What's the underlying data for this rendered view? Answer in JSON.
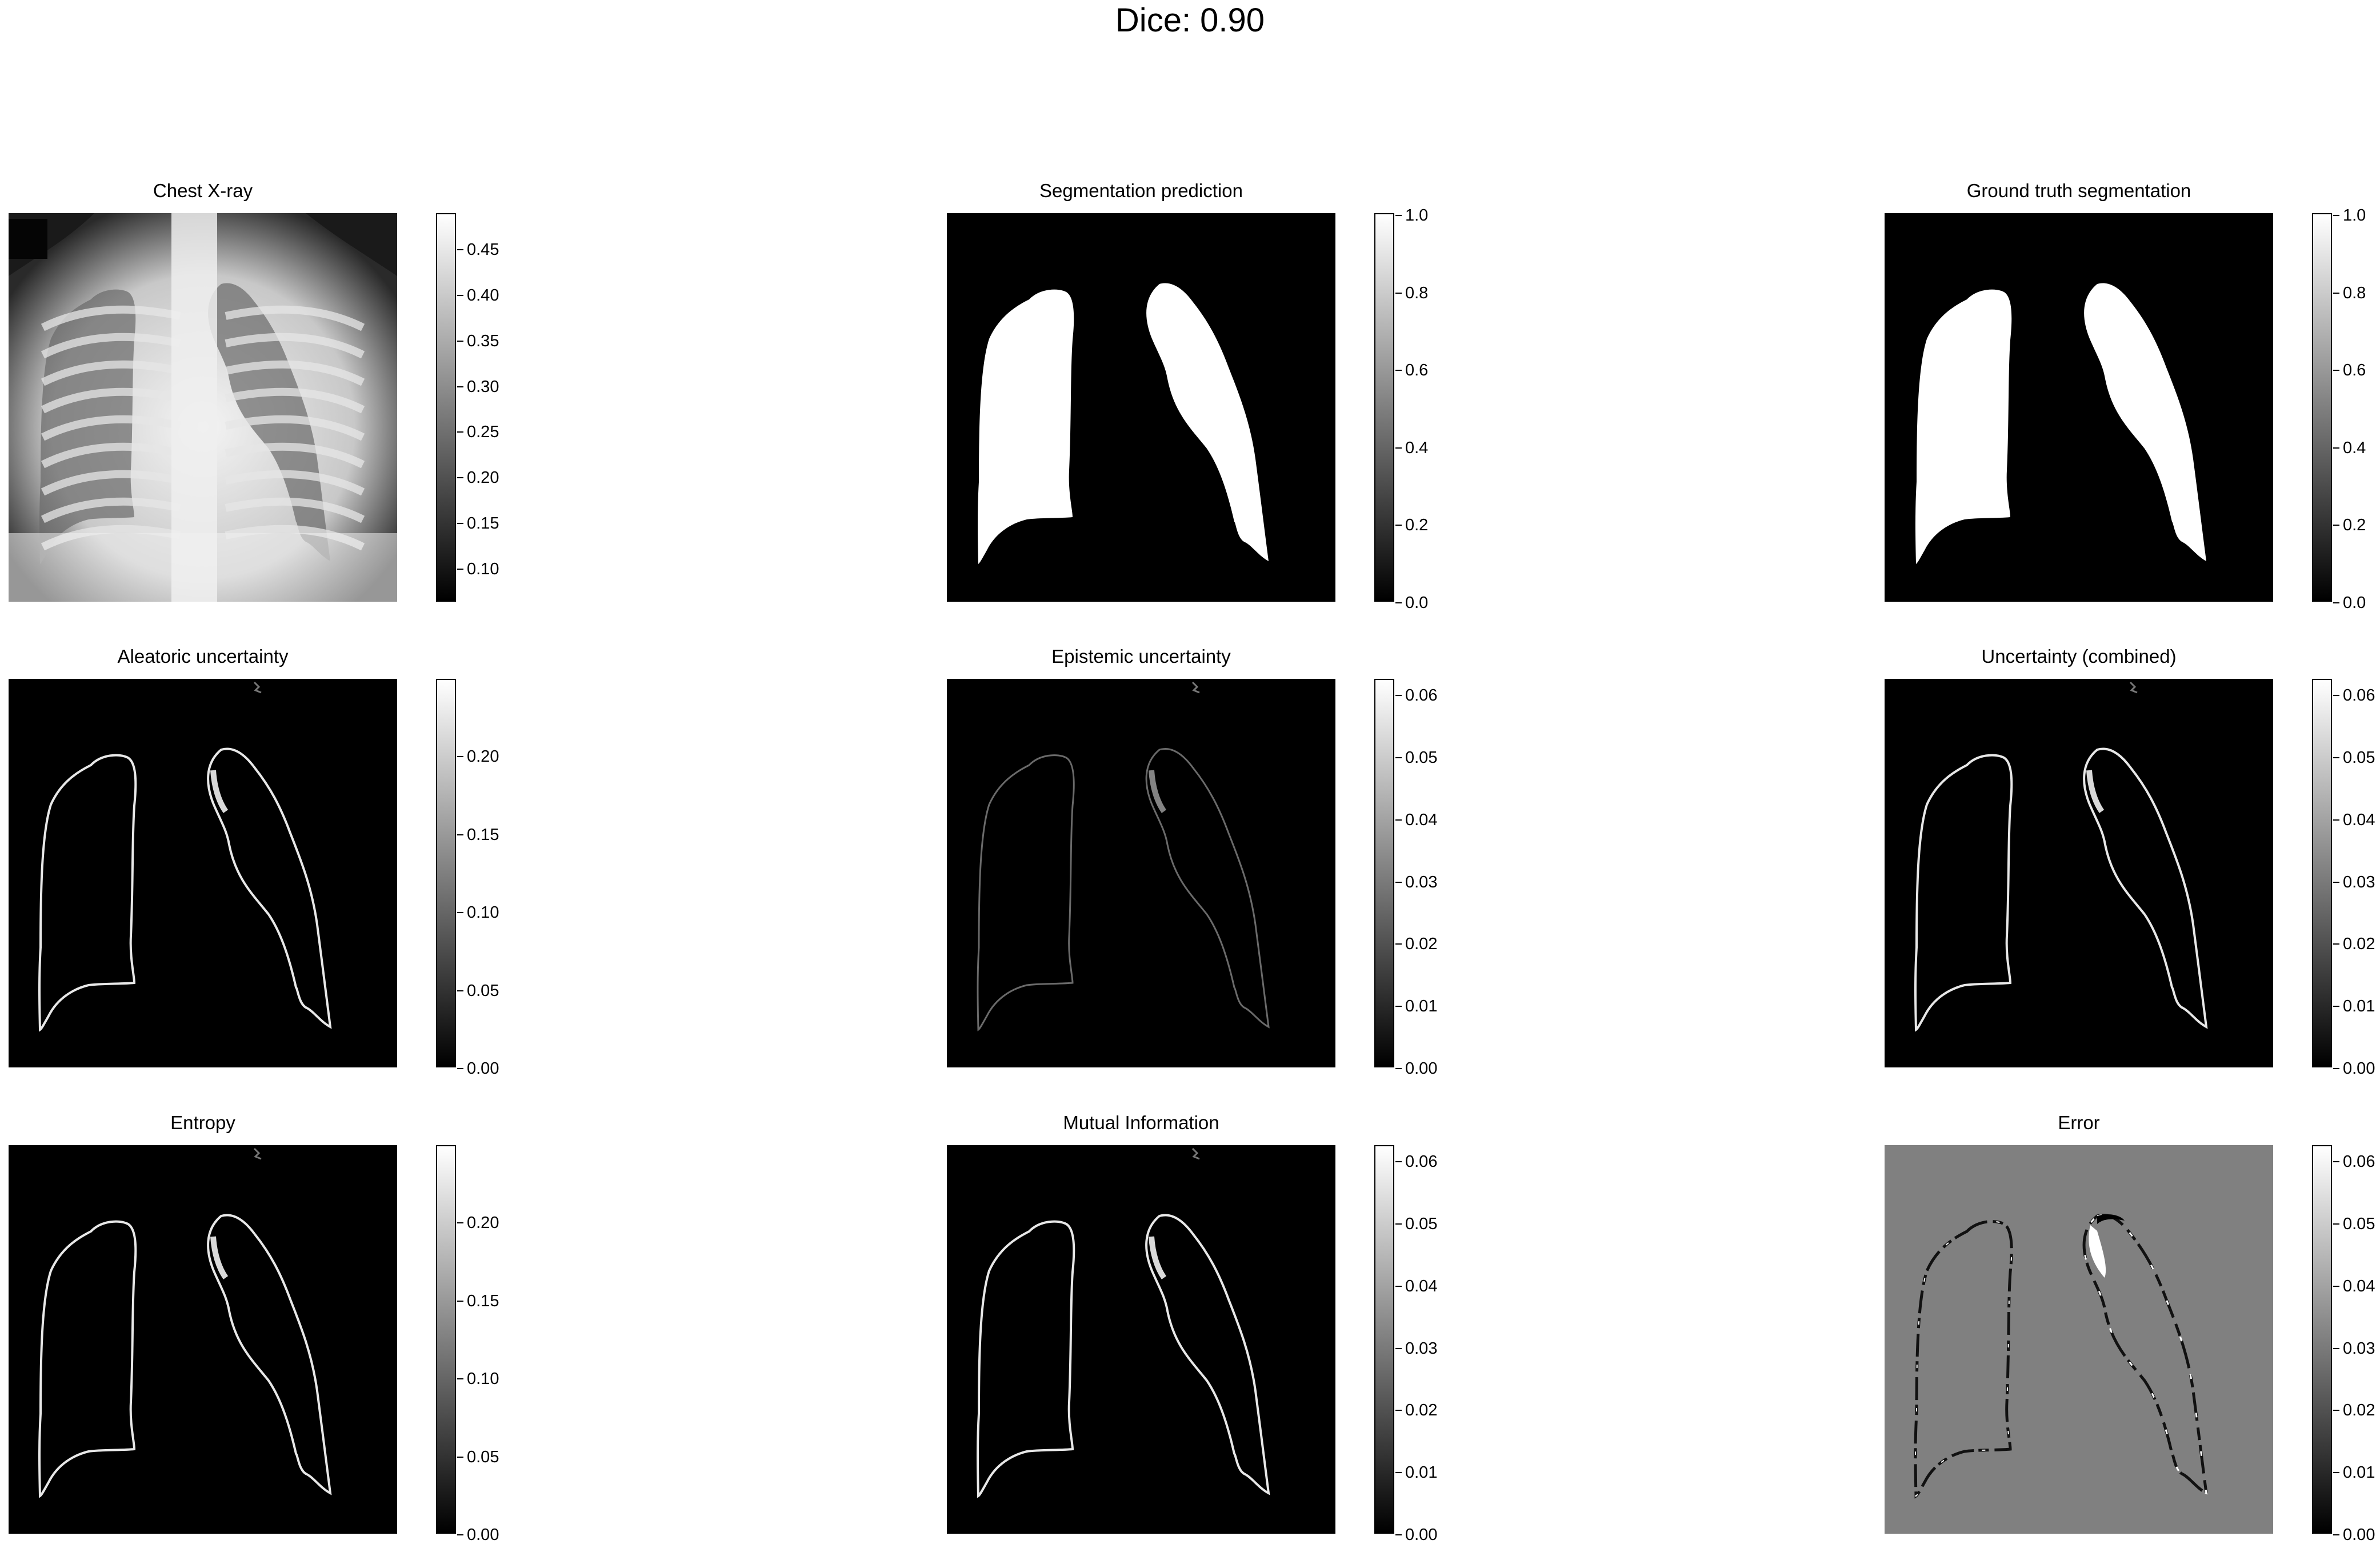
{
  "suptitle": "Dice: 0.90",
  "panels": [
    {
      "title": "Chest X-ray",
      "kind": "xray",
      "colorbar": {
        "ticks": [
          "0.10",
          "0.15",
          "0.20",
          "0.25",
          "0.30",
          "0.35",
          "0.40",
          "0.45"
        ]
      }
    },
    {
      "title": "Segmentation prediction",
      "kind": "mask",
      "colorbar": {
        "ticks": [
          "0.0",
          "0.2",
          "0.4",
          "0.6",
          "0.8",
          "1.0"
        ]
      }
    },
    {
      "title": "Ground truth segmentation",
      "kind": "mask",
      "colorbar": {
        "ticks": [
          "0.0",
          "0.2",
          "0.4",
          "0.6",
          "0.8",
          "1.0"
        ]
      }
    },
    {
      "title": "Aleatoric uncertainty",
      "kind": "edges",
      "colorbar": {
        "ticks": [
          "0.00",
          "0.05",
          "0.10",
          "0.15",
          "0.20"
        ]
      }
    },
    {
      "title": "Epistemic uncertainty",
      "kind": "edges-faint",
      "colorbar": {
        "ticks": [
          "0.00",
          "0.01",
          "0.02",
          "0.03",
          "0.04",
          "0.05",
          "0.06"
        ]
      }
    },
    {
      "title": "Uncertainty (combined)",
      "kind": "edges",
      "colorbar": {
        "ticks": [
          "0.00",
          "0.01",
          "0.02",
          "0.03",
          "0.04",
          "0.05",
          "0.06"
        ]
      }
    },
    {
      "title": "Entropy",
      "kind": "edges",
      "colorbar": {
        "ticks": [
          "0.00",
          "0.05",
          "0.10",
          "0.15",
          "0.20"
        ]
      }
    },
    {
      "title": "Mutual Information",
      "kind": "edges",
      "colorbar": {
        "ticks": [
          "0.00",
          "0.01",
          "0.02",
          "0.03",
          "0.04",
          "0.05",
          "0.06"
        ]
      }
    },
    {
      "title": "Error",
      "kind": "error",
      "colorbar": {
        "ticks": [
          "0.00",
          "0.01",
          "0.02",
          "0.03",
          "0.04",
          "0.05",
          "0.06"
        ]
      }
    }
  ]
}
